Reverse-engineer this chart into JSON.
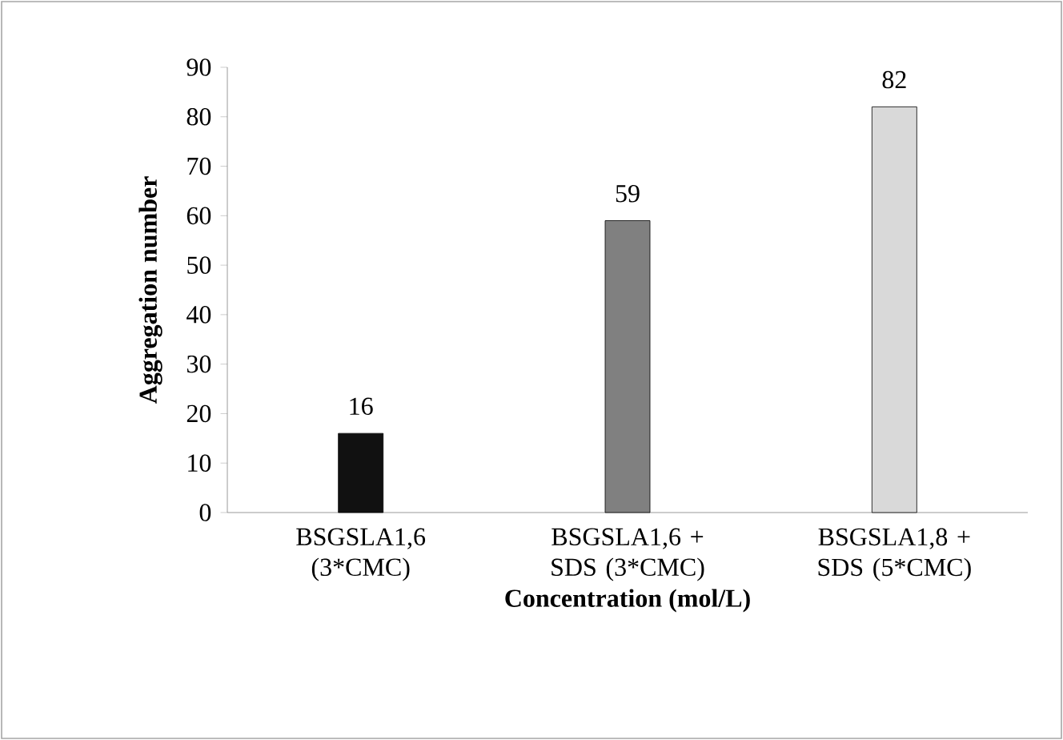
{
  "chart_data": {
    "type": "bar",
    "xlabel": "Concentration (mol/L)",
    "ylabel": "Aggregation  number",
    "categories": [
      "BSGSLA1,6 (3*CMC)",
      "BSGSLA1,6 + SDS (3*CMC)",
      "BSGSLA1,8 + SDS (5*CMC)"
    ],
    "values": [
      16,
      59,
      82
    ],
    "colors": [
      "#111111",
      "#808080",
      "#d9d9d9"
    ],
    "ylim": [
      0,
      90
    ],
    "yticks": [
      0,
      10,
      20,
      30,
      40,
      50,
      60,
      70,
      80,
      90
    ],
    "data_labels": true
  }
}
